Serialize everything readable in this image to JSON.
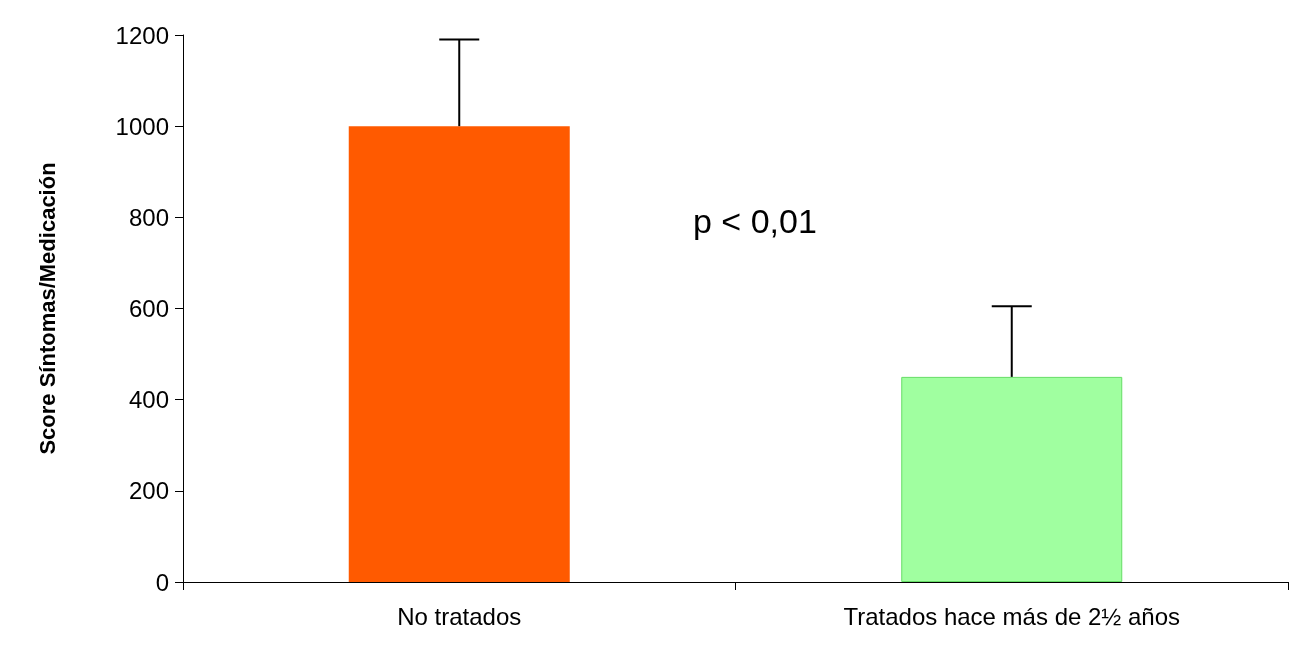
{
  "chart_data": {
    "type": "bar",
    "ylabel": "Score Síntomas/Medicación",
    "categories": [
      "No tratados",
      "Tratados hace más de 2½ años"
    ],
    "values": [
      1000,
      450
    ],
    "colors": [
      "#ff5a00",
      "#a0ffa0"
    ],
    "errors": [
      [
        1000,
        1190
      ],
      [
        450,
        605
      ]
    ],
    "ylim": [
      0,
      1200
    ],
    "yticks": [
      0,
      200,
      400,
      600,
      800,
      1000,
      1200
    ],
    "grid": false,
    "annotations": [
      "p < 0,01"
    ]
  }
}
